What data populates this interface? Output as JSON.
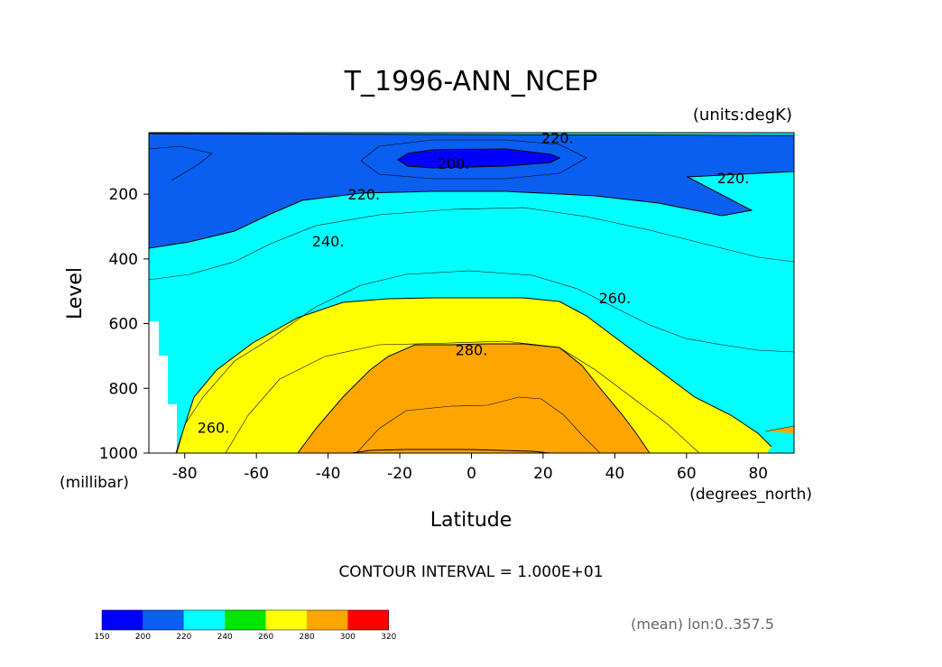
{
  "chart_data": {
    "type": "contour",
    "title": "T_1996-ANN_NCEP",
    "units_label": "(units:degK)",
    "xlabel": "Latitude",
    "xunit": "(degrees_north)",
    "ylabel": "Level",
    "yunit": "(millibar)",
    "x_ticks": [
      "-80",
      "-60",
      "-40",
      "-20",
      "0",
      "20",
      "40",
      "60",
      "80"
    ],
    "x_tick_values": [
      -80,
      -60,
      -40,
      -20,
      0,
      20,
      40,
      60,
      80
    ],
    "y_ticks": [
      "200",
      "400",
      "600",
      "800",
      "1000"
    ],
    "y_tick_values": [
      200,
      400,
      600,
      800,
      1000
    ],
    "xlim": [
      -90,
      90
    ],
    "ylim": [
      1000,
      10
    ],
    "contour_interval": "CONTOUR INTERVAL = 1.000E+01",
    "contour_labels": [
      {
        "text": "200.",
        "lat": -5,
        "lev": 105
      },
      {
        "text": "220.",
        "lat": 24,
        "lev": 25
      },
      {
        "text": "220.",
        "lat": -30,
        "lev": 200
      },
      {
        "text": "220.",
        "lat": 73,
        "lev": 150
      },
      {
        "text": "240.",
        "lat": -40,
        "lev": 345
      },
      {
        "text": "260.",
        "lat": 40,
        "lev": 520
      },
      {
        "text": "260.",
        "lat": -72,
        "lev": 920
      },
      {
        "text": "280.",
        "lat": 0,
        "lev": 680
      }
    ],
    "colorbar": {
      "ticks": [
        "150",
        "200",
        "220",
        "240",
        "260",
        "280",
        "300",
        "320"
      ],
      "colors": [
        "#0000ff",
        "#0a5ef0",
        "#00ffff",
        "#00e600",
        "#ffff00",
        "#ffa500",
        "#ff0000"
      ]
    },
    "footnote": "(mean) lon:0..357.5"
  }
}
